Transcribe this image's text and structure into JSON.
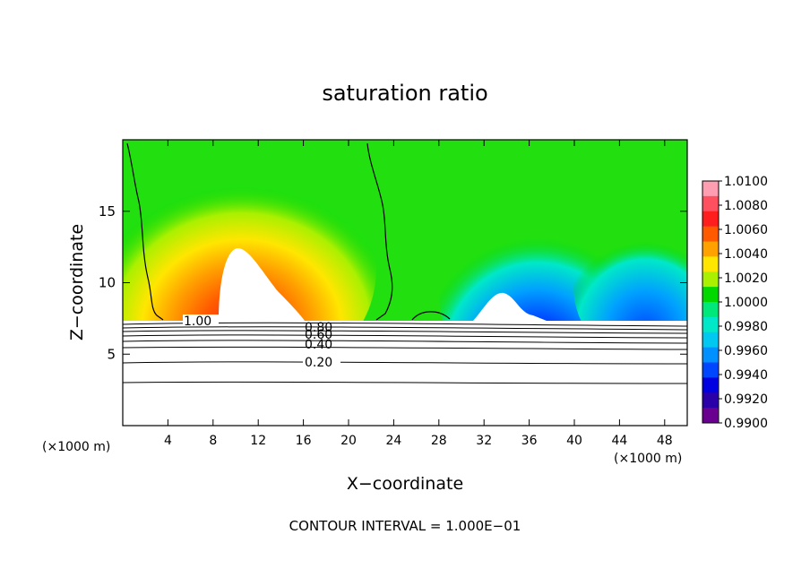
{
  "chart_data": {
    "type": "heatmap",
    "title": "saturation ratio",
    "xlabel": "X−coordinate",
    "ylabel": "Z−coordinate",
    "x_unit_left": "(×1000 m)",
    "x_unit_right": "(×1000 m)",
    "xlim": [
      0,
      50
    ],
    "ylim": [
      0,
      20
    ],
    "x_ticks": [
      4,
      8,
      12,
      16,
      20,
      24,
      28,
      32,
      36,
      40,
      44,
      48
    ],
    "x_tick_labels": [
      "4",
      "8",
      "12",
      "16",
      "20",
      "24",
      "28",
      "32",
      "36",
      "40",
      "44",
      "48"
    ],
    "y_ticks": [
      5,
      10,
      15
    ],
    "y_tick_labels": [
      "5",
      "10",
      "15"
    ],
    "footer": "CONTOUR INTERVAL = 1.000E−01",
    "colorbar": {
      "range": [
        0.99,
        1.01
      ],
      "tick_labels": [
        "1.0100",
        "1.0080",
        "1.0060",
        "1.0040",
        "1.0020",
        "1.0000",
        "0.9980",
        "0.9960",
        "0.9940",
        "0.9920",
        "0.9900"
      ],
      "colors": [
        "#ff9eb0",
        "#ff5060",
        "#ff1e1e",
        "#ff5a00",
        "#ffa200",
        "#ffe600",
        "#aaf000",
        "#00d800",
        "#00e87a",
        "#00e8c8",
        "#00c8f0",
        "#0090ff",
        "#0046ff",
        "#0000e0",
        "#2a00a8",
        "#6a0090"
      ]
    },
    "contour_labels": [
      "1.00",
      "0.80",
      "0.60",
      "0.40",
      "0.20"
    ],
    "cloud_base_z": 7.3
  }
}
